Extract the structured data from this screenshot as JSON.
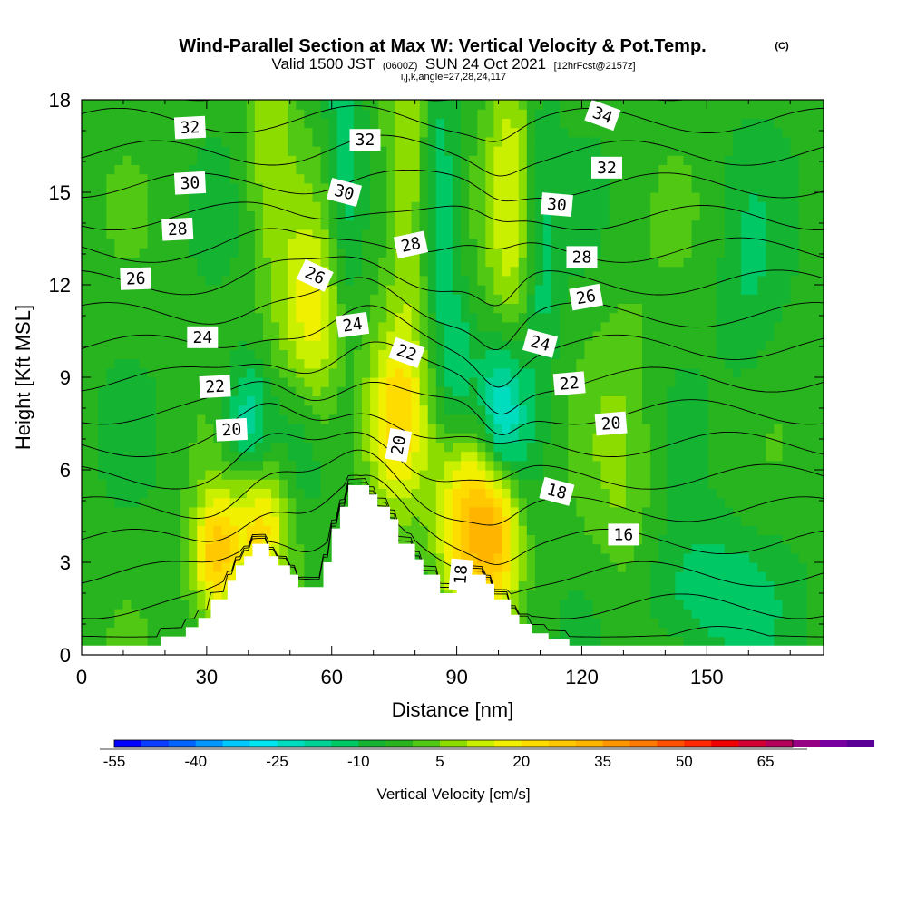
{
  "chart_data": {
    "type": "heatmap",
    "title": "Wind-Parallel Section at Max W: Vertical Velocity & Pot.Temp.",
    "title_mark": "(C)",
    "subtitle_parts": [
      "Valid 1500 JST",
      "(0600Z)",
      "SUN 24 Oct 2021",
      "[12hrFcst@2157z]"
    ],
    "subtitle2": "i,j,k,angle=27,28,24,117",
    "xlabel": "Distance [nm]",
    "ylabel": "Height [Kft MSL]",
    "xlim": [
      0,
      178
    ],
    "ylim": [
      0,
      18
    ],
    "x_ticks": [
      "0",
      "30",
      "60",
      "90",
      "120",
      "150"
    ],
    "x_tick_values": [
      0,
      30,
      60,
      90,
      120,
      150
    ],
    "y_ticks": [
      "0",
      "3",
      "6",
      "9",
      "12",
      "15",
      "18"
    ],
    "y_tick_values": [
      0,
      3,
      6,
      9,
      12,
      15,
      18
    ],
    "colorbar": {
      "title": "Vertical Velocity [cm/s]",
      "min": -55,
      "max": 70,
      "step": 5,
      "tick_labels": [
        "-55",
        "-40",
        "-25",
        "-10",
        "5",
        "20",
        "35",
        "50",
        "65"
      ],
      "tick_values": [
        -55,
        -40,
        -25,
        -10,
        5,
        20,
        35,
        50,
        65
      ],
      "colors": [
        "#0000ff",
        "#0a3cff",
        "#0064ff",
        "#0096ff",
        "#00c8ff",
        "#00e6f0",
        "#00dcbe",
        "#00d296",
        "#00c864",
        "#14b432",
        "#28b41e",
        "#50c814",
        "#8cdc00",
        "#c8f000",
        "#f0f000",
        "#ffdc00",
        "#ffc800",
        "#ffb400",
        "#ff9600",
        "#ff7800",
        "#ff5000",
        "#ff2800",
        "#f00000",
        "#d20032",
        "#b4005a",
        "#960082",
        "#7800a0",
        "#5a0096"
      ]
    },
    "terrain": {
      "x": [
        0,
        19,
        19,
        25,
        25,
        28,
        28,
        31,
        31,
        35,
        35,
        37,
        37,
        39,
        39,
        41,
        41,
        45,
        45,
        47,
        47,
        50,
        50,
        52,
        52,
        58,
        58,
        60,
        60,
        62,
        62,
        64,
        64,
        69,
        69,
        71,
        71,
        74,
        74,
        76,
        76,
        80,
        80,
        82,
        82,
        86,
        86,
        90,
        90,
        94,
        94,
        97,
        97,
        99,
        99,
        103,
        103,
        105,
        105,
        108,
        108,
        112,
        112,
        117,
        117,
        120,
        120,
        178
      ],
      "y": [
        0.3,
        0.3,
        0.6,
        0.6,
        0.9,
        0.9,
        1.2,
        1.2,
        1.8,
        1.8,
        2.4,
        2.4,
        2.9,
        2.9,
        3.2,
        3.2,
        3.6,
        3.6,
        3.2,
        3.2,
        2.9,
        2.9,
        2.6,
        2.6,
        2.2,
        2.2,
        3.0,
        3.0,
        4.1,
        4.1,
        4.8,
        4.8,
        5.5,
        5.5,
        5.2,
        5.2,
        4.8,
        4.8,
        4.4,
        4.4,
        3.6,
        3.6,
        3.1,
        3.1,
        2.6,
        2.6,
        2.0,
        2.0,
        2.6,
        2.6,
        2.6,
        2.6,
        2.3,
        2.3,
        1.8,
        1.8,
        1.3,
        1.3,
        1.0,
        1.0,
        0.7,
        0.7,
        0.5,
        0.5,
        0.3,
        0.3,
        0.3,
        0.3
      ]
    },
    "w_features": [
      {
        "x": 32,
        "y": 3.2,
        "sx": 4,
        "sy": 1.5,
        "v": 30
      },
      {
        "x": 43,
        "y": 4.2,
        "sx": 5,
        "sy": 1.5,
        "v": 25
      },
      {
        "x": 40,
        "y": 7.5,
        "sx": 4,
        "sy": 1.5,
        "v": -18
      },
      {
        "x": 55,
        "y": 10.5,
        "sx": 6,
        "sy": 2.5,
        "v": 22
      },
      {
        "x": 52,
        "y": 7.5,
        "sx": 4,
        "sy": 2,
        "v": -8
      },
      {
        "x": 75,
        "y": 7.5,
        "sx": 5,
        "sy": 2,
        "v": 20
      },
      {
        "x": 92,
        "y": 4.5,
        "sx": 5,
        "sy": 2.2,
        "v": 30
      },
      {
        "x": 100,
        "y": 4.3,
        "sx": 4,
        "sy": 2,
        "v": 30
      },
      {
        "x": 101,
        "y": 7.5,
        "sx": 4,
        "sy": 1.8,
        "v": -28
      },
      {
        "x": 90,
        "y": 9,
        "sx": 3,
        "sy": 2,
        "v": -12
      },
      {
        "x": 78,
        "y": 15,
        "sx": 4,
        "sy": 5,
        "v": 15
      },
      {
        "x": 103,
        "y": 15,
        "sx": 4,
        "sy": 4,
        "v": 15
      },
      {
        "x": 63,
        "y": 16,
        "sx": 3,
        "sy": 5,
        "v": -12
      },
      {
        "x": 86,
        "y": 15,
        "sx": 3,
        "sy": 4,
        "v": -10
      },
      {
        "x": 110,
        "y": 13,
        "sx": 3,
        "sy": 4,
        "v": -10
      },
      {
        "x": 45,
        "y": 17,
        "sx": 4,
        "sy": 3,
        "v": 12
      },
      {
        "x": 150,
        "y": 2,
        "sx": 12,
        "sy": 1.5,
        "v": -12
      },
      {
        "x": 160,
        "y": 12,
        "sx": 5,
        "sy": 3,
        "v": -6
      },
      {
        "x": 130,
        "y": 6,
        "sx": 6,
        "sy": 4,
        "v": 8
      }
    ],
    "w_background": -3,
    "theta_levels": [
      16,
      17,
      18,
      19,
      20,
      21,
      22,
      23,
      24,
      25,
      26,
      27,
      28,
      29,
      30,
      31,
      32,
      33,
      34,
      35
    ],
    "contour_labels": [
      {
        "text": "32",
        "x": 26,
        "y": 17.1,
        "angle": -3
      },
      {
        "text": "30",
        "x": 26,
        "y": 15.3,
        "angle": -3
      },
      {
        "text": "28",
        "x": 23,
        "y": 13.8,
        "angle": -3
      },
      {
        "text": "26",
        "x": 13,
        "y": 12.2,
        "angle": -2
      },
      {
        "text": "24",
        "x": 29,
        "y": 10.3,
        "angle": 0
      },
      {
        "text": "22",
        "x": 32,
        "y": 8.7,
        "angle": -3
      },
      {
        "text": "20",
        "x": 36,
        "y": 7.3,
        "angle": -3
      },
      {
        "text": "32",
        "x": 68,
        "y": 16.7,
        "angle": 0
      },
      {
        "text": "30",
        "x": 63,
        "y": 15.0,
        "angle": 15
      },
      {
        "text": "28",
        "x": 79,
        "y": 13.3,
        "angle": -12
      },
      {
        "text": "26",
        "x": 56,
        "y": 12.3,
        "angle": 25
      },
      {
        "text": "24",
        "x": 65,
        "y": 10.7,
        "angle": -8
      },
      {
        "text": "22",
        "x": 78,
        "y": 9.8,
        "angle": 20
      },
      {
        "text": "20",
        "x": 76,
        "y": 6.8,
        "angle": -80
      },
      {
        "text": "18",
        "x": 91,
        "y": 2.6,
        "angle": -85
      },
      {
        "text": "34",
        "x": 125,
        "y": 17.5,
        "angle": 20
      },
      {
        "text": "32",
        "x": 126,
        "y": 15.8,
        "angle": 0
      },
      {
        "text": "30",
        "x": 114,
        "y": 14.6,
        "angle": 5
      },
      {
        "text": "28",
        "x": 120,
        "y": 12.9,
        "angle": 0
      },
      {
        "text": "26",
        "x": 121,
        "y": 11.6,
        "angle": -10
      },
      {
        "text": "24",
        "x": 110,
        "y": 10.1,
        "angle": 15
      },
      {
        "text": "22",
        "x": 117,
        "y": 8.8,
        "angle": -5
      },
      {
        "text": "20",
        "x": 127,
        "y": 7.5,
        "angle": -5
      },
      {
        "text": "18",
        "x": 114,
        "y": 5.3,
        "angle": 15
      },
      {
        "text": "16",
        "x": 130,
        "y": 3.9,
        "angle": 0
      }
    ]
  }
}
